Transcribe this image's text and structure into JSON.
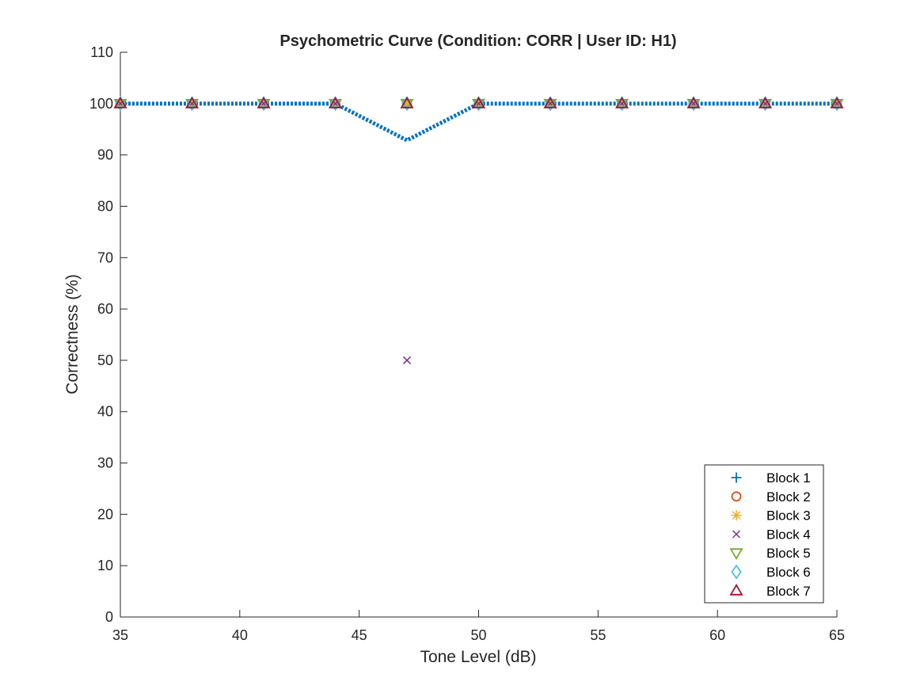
{
  "chart_data": {
    "type": "scatter",
    "title": "Psychometric Curve (Condition: CORR | User ID: H1)",
    "xlabel": "Tone Level (dB)",
    "ylabel": "Correctness (%)",
    "xlim": [
      35,
      65
    ],
    "ylim": [
      0,
      110
    ],
    "xticks": [
      35,
      40,
      45,
      50,
      55,
      60,
      65
    ],
    "yticks": [
      0,
      10,
      20,
      30,
      40,
      50,
      60,
      70,
      80,
      90,
      100,
      110
    ],
    "grid": false,
    "legend_position": "bottom-right",
    "x": [
      35,
      38,
      41,
      44,
      47,
      50,
      53,
      56,
      59,
      62,
      65
    ],
    "series": [
      {
        "name": "Block 1",
        "marker": "plus",
        "color": "#0072BD",
        "values": [
          100,
          100,
          100,
          100,
          100,
          100,
          100,
          100,
          100,
          100,
          100
        ]
      },
      {
        "name": "Block 2",
        "marker": "circle",
        "color": "#D95319",
        "values": [
          100,
          100,
          100,
          100,
          100,
          100,
          100,
          100,
          100,
          100,
          100
        ]
      },
      {
        "name": "Block 3",
        "marker": "asterisk",
        "color": "#EDB120",
        "values": [
          100,
          100,
          100,
          100,
          100,
          100,
          100,
          100,
          100,
          100,
          100
        ]
      },
      {
        "name": "Block 4",
        "marker": "x",
        "color": "#7E2F8E",
        "values": [
          100,
          100,
          100,
          100,
          50,
          100,
          100,
          100,
          100,
          100,
          100
        ]
      },
      {
        "name": "Block 5",
        "marker": "triangle-down",
        "color": "#77AC30",
        "values": [
          100,
          100,
          100,
          100,
          100,
          100,
          100,
          100,
          100,
          100,
          100
        ]
      },
      {
        "name": "Block 6",
        "marker": "diamond",
        "color": "#4DBEEE",
        "values": [
          100,
          100,
          100,
          100,
          100,
          100,
          100,
          100,
          100,
          100,
          100
        ]
      },
      {
        "name": "Block 7",
        "marker": "triangle-up",
        "color": "#A2142F",
        "values": [
          100,
          100,
          100,
          100,
          100,
          100,
          100,
          100,
          100,
          100,
          100
        ]
      }
    ],
    "mean_line": {
      "style": "dotted",
      "color": "#0072BD",
      "values": [
        100,
        100,
        100,
        100,
        92.86,
        100,
        100,
        100,
        100,
        100,
        100
      ]
    }
  }
}
